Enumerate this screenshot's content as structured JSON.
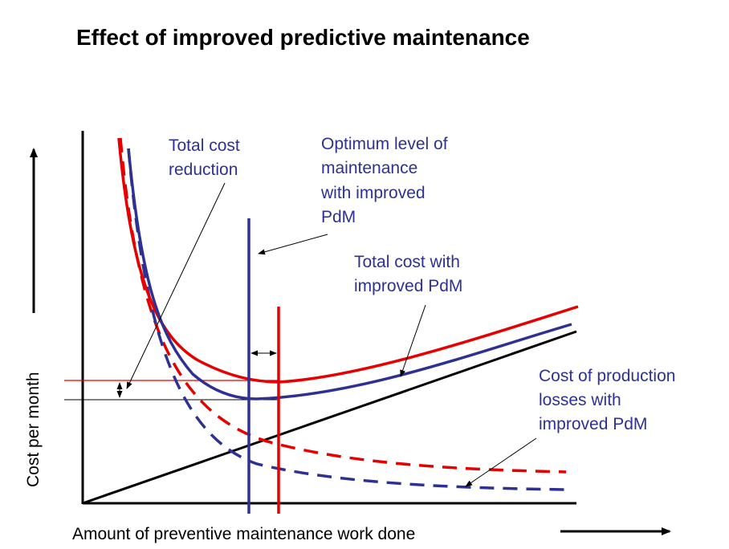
{
  "title": "Effect of improved predictive maintenance",
  "xlabel": "Amount of preventive maintenance work done",
  "ylabel": "Cost per month",
  "annotations": {
    "total_cost_reduction": [
      "Total cost",
      "reduction"
    ],
    "optimum_level": [
      "Optimum level of",
      "maintenance",
      "with improved",
      "PdM"
    ],
    "total_cost_improved": [
      "Total cost with",
      "improved PdM"
    ],
    "production_losses_improved": [
      "Cost of production",
      "losses with",
      "improved PdM"
    ]
  },
  "colors": {
    "original": "#e60000",
    "improved": "#2e3192",
    "maintenance_cost": "#000000",
    "annotation_text": "#2e3192"
  },
  "icons": [
    "arrow-up-icon",
    "arrow-right-icon"
  ]
}
